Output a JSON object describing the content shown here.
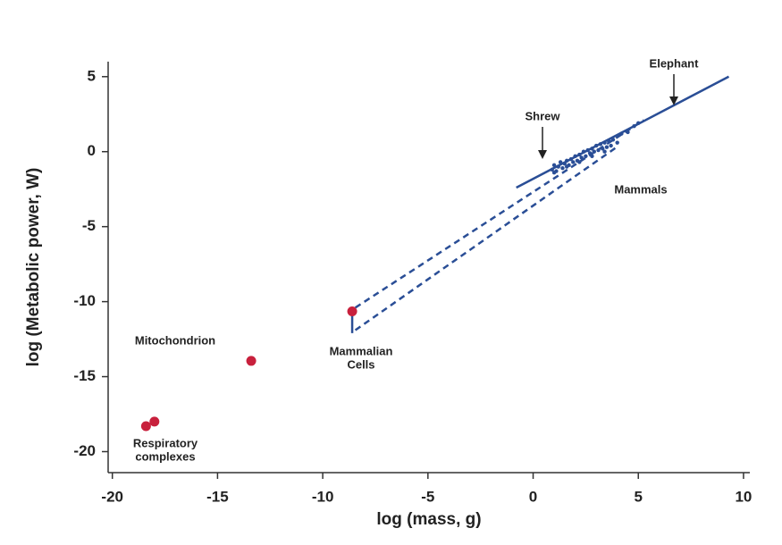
{
  "chart_data": {
    "type": "scatter",
    "x_label": "log (mass, g)",
    "y_label": "log (Metabolic power, W)",
    "xlim": [
      -20.2,
      10.3
    ],
    "ylim": [
      -21.4,
      6
    ],
    "xticks": [
      -20,
      -15,
      -10,
      -5,
      0,
      5,
      10
    ],
    "yticks": [
      5,
      0,
      -5,
      -10,
      -15,
      -20
    ],
    "series": [
      {
        "type": "scatter",
        "color": "#c8203c",
        "size": "large",
        "x": [
          -18.4,
          -18.0,
          -13.4,
          -8.6
        ],
        "values": [
          -18.3,
          -18.0,
          -13.95,
          -10.65
        ]
      },
      {
        "type": "scatter",
        "color": "#2a4e96",
        "size": "small",
        "x": [
          0.9,
          1.0,
          1.1,
          1.2,
          1.3,
          1.4,
          1.5,
          1.6,
          1.7,
          1.8,
          1.9,
          2.0,
          2.1,
          2.2,
          2.3,
          2.4,
          2.5,
          2.6,
          2.7,
          2.8,
          2.9,
          3.0,
          3.1,
          3.2,
          3.3,
          3.4,
          3.5,
          3.6,
          3.7,
          3.8,
          4.0,
          4.2,
          4.5,
          4.8,
          5.0,
          1.0,
          1.6,
          2.2,
          2.8,
          3.4
        ],
        "values": [
          -1.2,
          -0.9,
          -1.3,
          -1.0,
          -0.7,
          -1.1,
          -0.8,
          -0.6,
          -0.9,
          -0.5,
          -0.7,
          -0.3,
          -0.6,
          -0.2,
          -0.4,
          0.0,
          -0.3,
          0.1,
          -0.1,
          0.2,
          0.0,
          0.4,
          0.1,
          0.5,
          0.2,
          0.6,
          0.3,
          0.7,
          0.4,
          0.8,
          0.6,
          1.2,
          1.3,
          1.7,
          1.9,
          -1.4,
          -1.0,
          -0.7,
          -0.3,
          0.0
        ]
      },
      {
        "type": "line",
        "color": "#2a4e96",
        "style": "solid",
        "x": [
          -0.8,
          9.3
        ],
        "values": [
          -2.4,
          5.0
        ]
      },
      {
        "type": "line",
        "color": "#2a4e96",
        "style": "dashed",
        "x": [
          -8.45,
          5.25
        ],
        "values": [
          -10.4,
          2.1
        ]
      },
      {
        "type": "line",
        "color": "#2a4e96",
        "style": "dashed",
        "x": [
          -8.45,
          3.97
        ],
        "values": [
          -11.9,
          0.3
        ]
      },
      {
        "type": "line",
        "color": "#2a4e96",
        "style": "solid",
        "x": [
          -8.6,
          -8.6
        ],
        "values": [
          -10.5,
          -12.1
        ]
      }
    ],
    "annotations": [
      [
        "Elephant"
      ],
      [
        "Shrew"
      ],
      [
        "Mammals"
      ],
      [
        "Mitochondrion"
      ],
      [
        "Mammalian",
        "Cells"
      ],
      [
        "Respiratory",
        "complexes"
      ]
    ]
  }
}
